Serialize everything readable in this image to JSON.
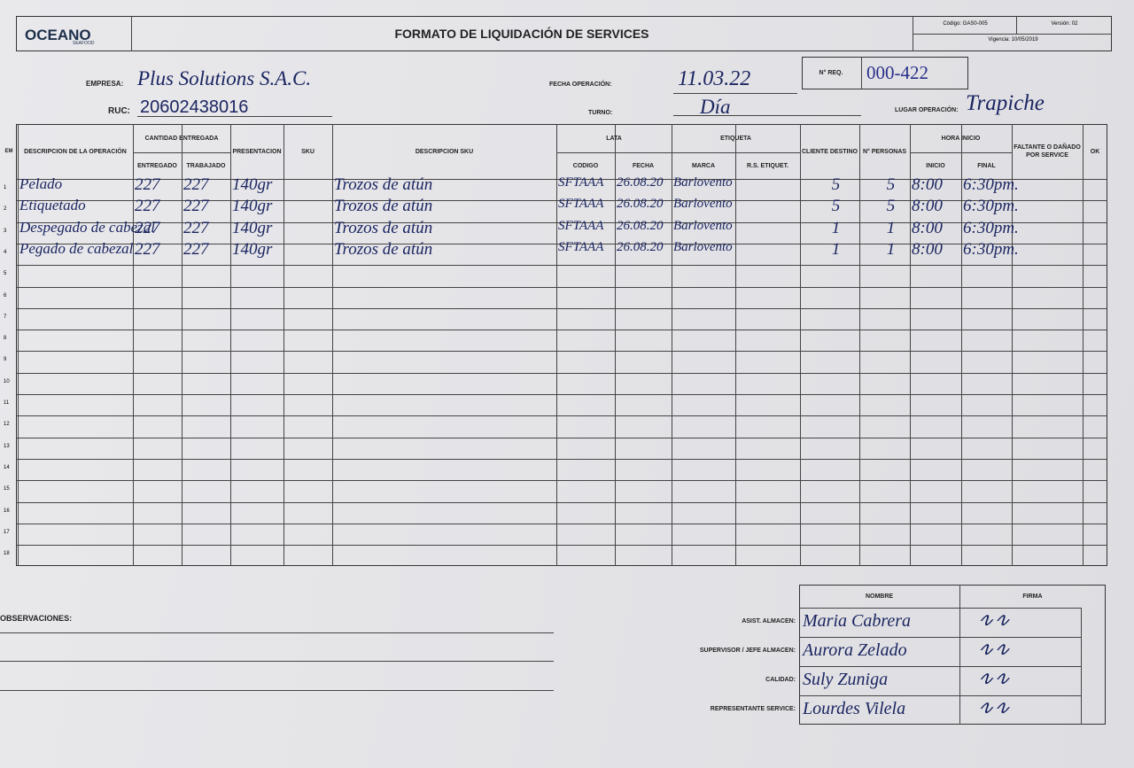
{
  "header": {
    "logo": "OCEANO",
    "logo_sub": "SEAFOOD",
    "title": "FORMATO DE LIQUIDACIÓN DE SERVICES",
    "codigo": "Código: GAS0-005",
    "version": "Versión: 02",
    "vigencia": "Vigencia: 10/05/2019"
  },
  "fields": {
    "empresa_label": "EMPRESA:",
    "empresa": "Plus Solutions S.A.C.",
    "ruc_label": "RUC:",
    "ruc": "20602438016",
    "fecha_label": "FECHA OPERACIÓN:",
    "fecha": "11.03.22",
    "req_label": "N° REQ.",
    "req": "000-422",
    "turno_label": "TURNO:",
    "turno": "Día",
    "lugar_label": "LUGAR OPERACIÓN:",
    "lugar": "Trapiche"
  },
  "table": {
    "headers": {
      "item": "EM",
      "op": "DESCRIPCION DE LA OPERACIÓN",
      "cantidad": "CANTIDAD ENTREGADA",
      "ent": "ENTREGADO",
      "trab": "TRABAJADO",
      "pres": "PRESENTACION",
      "sku": "SKU",
      "dsku": "DESCRIPCION SKU",
      "lata": "LATA",
      "cod": "CODIGO",
      "fec": "FECHA",
      "etiqueta": "ETIQUETA",
      "mar": "MARCA",
      "rs": "R.S. ETIQUET.",
      "cli": "CLIENTE DESTINO",
      "per": "N° PERSONAS",
      "hora": "HORA INICIO",
      "ini": "INICIO",
      "fin": "FINAL",
      "falt": "FALTANTE O DAÑADO POR SERVICE",
      "ok": "OK"
    },
    "rows": [
      {
        "item": 1,
        "op": "Pelado",
        "ent": 227,
        "trab": 227,
        "pres": "140gr",
        "dsku": "Trozos de atún",
        "cod": "SFTAAA",
        "fec": "26.08.20",
        "mar": "Barlovento",
        "cli": 5,
        "per": 5,
        "ini": "8:00",
        "fin": "6:30pm."
      },
      {
        "item": 2,
        "op": "Etiquetado",
        "ent": 227,
        "trab": 227,
        "pres": "140gr",
        "dsku": "Trozos de atún",
        "cod": "SFTAAA",
        "fec": "26.08.20",
        "mar": "Barlovento",
        "cli": 5,
        "per": 5,
        "ini": "8:00",
        "fin": "6:30pm."
      },
      {
        "item": 3,
        "op": "Despegado de cabezal",
        "ent": 227,
        "trab": 227,
        "pres": "140gr",
        "dsku": "Trozos de atún",
        "cod": "SFTAAA",
        "fec": "26.08.20",
        "mar": "Barlovento",
        "cli": 1,
        "per": 1,
        "ini": "8:00",
        "fin": "6:30pm."
      },
      {
        "item": 4,
        "op": "Pegado de cabezal",
        "ent": 227,
        "trab": 227,
        "pres": "140gr",
        "dsku": "Trozos de atún",
        "cod": "SFTAAA",
        "fec": "26.08.20",
        "mar": "Barlovento",
        "cli": 1,
        "per": 1,
        "ini": "8:00",
        "fin": "6:30pm."
      },
      {
        "item": 5
      },
      {
        "item": 6
      },
      {
        "item": 7
      },
      {
        "item": 8
      },
      {
        "item": 9
      },
      {
        "item": 10
      },
      {
        "item": 11
      },
      {
        "item": 12
      },
      {
        "item": 13
      },
      {
        "item": 14
      },
      {
        "item": 15
      },
      {
        "item": 16
      },
      {
        "item": 17
      },
      {
        "item": 18
      }
    ]
  },
  "footer": {
    "observaciones": "OBSERVACIONES:",
    "nombre": "NOMBRE",
    "firma": "FIRMA",
    "signers": [
      {
        "role": "ASIST. ALMACEN:",
        "name": "Maria Cabrera"
      },
      {
        "role": "SUPERVISOR / JEFE ALMACEN:",
        "name": "Aurora Zelado"
      },
      {
        "role": "CALIDAD:",
        "name": "Suly Zuniga"
      },
      {
        "role": "REPRESENTANTE SERVICE:",
        "name": "Lourdes Vilela"
      }
    ]
  }
}
